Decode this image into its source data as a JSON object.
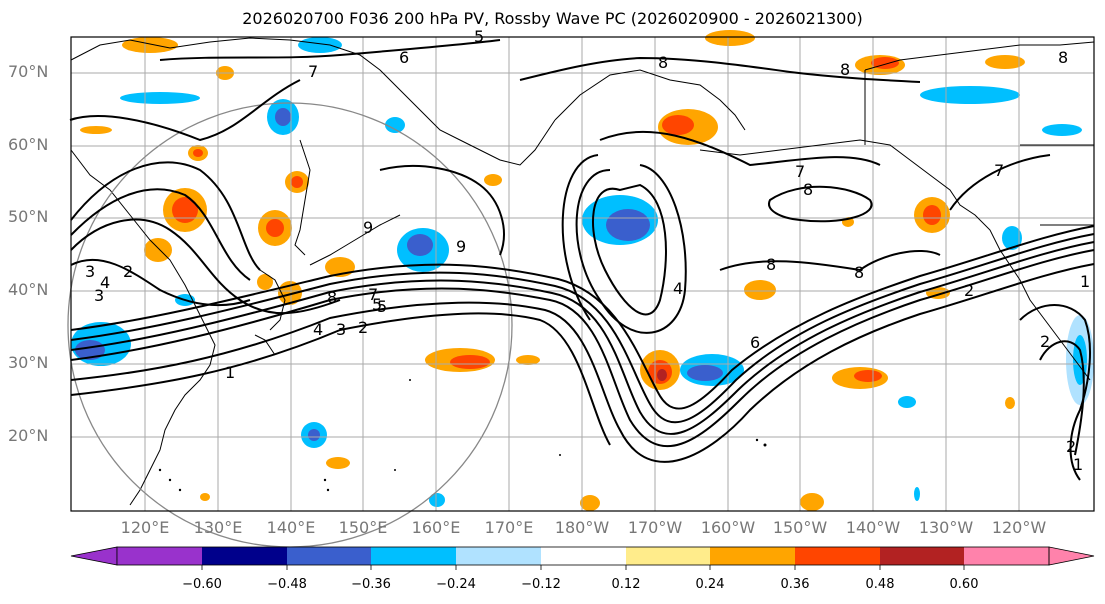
{
  "title": "2026020700 F036 200 hPa PV, Rossby Wave PC (2026020900 - 2026021300)",
  "map": {
    "lat_labels": [
      "70°N",
      "60°N",
      "50°N",
      "40°N",
      "30°N",
      "20°N"
    ],
    "lon_labels": [
      "120°E",
      "130°E",
      "140°E",
      "150°E",
      "160°E",
      "170°E",
      "180°W",
      "170°W",
      "160°W",
      "150°W",
      "140°W",
      "130°W",
      "120°W"
    ],
    "contour_labels": [
      "5",
      "6",
      "7",
      "8",
      "8",
      "8",
      "7",
      "8",
      "8",
      "8",
      "7",
      "2",
      "9",
      "9",
      "3",
      "4",
      "3",
      "2",
      "1",
      "5",
      "8",
      "7",
      "5",
      "4",
      "3",
      "2",
      "1",
      "6",
      "2",
      "4",
      "2",
      "1"
    ]
  },
  "colorbar": {
    "tick_labels": [
      "−0.60",
      "−0.48",
      "−0.36",
      "−0.24",
      "−0.12",
      "0.12",
      "0.24",
      "0.36",
      "0.48",
      "0.60"
    ],
    "colors": [
      "#9932cc",
      "#00008b",
      "#3a5fcd",
      "#00bfff",
      "#b0e2ff",
      "#ffffff",
      "#ffec8b",
      "#ffa500",
      "#ff4500",
      "#b22222",
      "#ff82ab"
    ]
  }
}
